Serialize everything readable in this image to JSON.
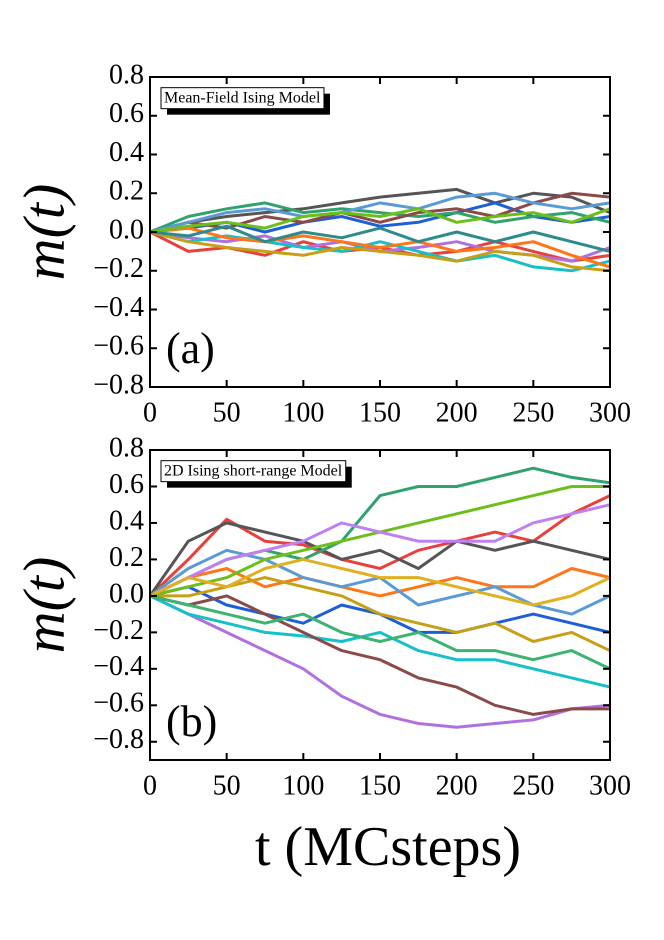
{
  "chart_data": [
    {
      "type": "line",
      "annotation": "Mean-Field Ising Model",
      "panel_label": "(a)",
      "ylabel": "m(t)",
      "x": [
        0,
        25,
        50,
        75,
        100,
        125,
        150,
        175,
        200,
        225,
        250,
        275,
        300
      ],
      "xlim": [
        0,
        300
      ],
      "xticks": [
        0,
        50,
        100,
        150,
        200,
        250,
        300
      ],
      "ylim": [
        -0.8,
        0.8
      ],
      "yticks": [
        {
          "value": -0.8,
          "label": "−0.8"
        },
        {
          "value": -0.6,
          "label": "−0.6"
        },
        {
          "value": -0.4,
          "label": "−0.4"
        },
        {
          "value": -0.2,
          "label": "−0.2"
        },
        {
          "value": 0,
          "label": "0.0"
        },
        0.2,
        0.4,
        0.6,
        0.8
      ],
      "series": [
        {
          "color": "#e8413b",
          "values": [
            0,
            -0.1,
            -0.08,
            -0.12,
            -0.05,
            -0.1,
            -0.08,
            -0.12,
            -0.1,
            -0.05,
            -0.1,
            -0.15,
            -0.12
          ]
        },
        {
          "color": "#555555",
          "values": [
            0,
            0.05,
            0.08,
            0.1,
            0.12,
            0.15,
            0.18,
            0.2,
            0.22,
            0.15,
            0.2,
            0.18,
            0.1
          ]
        },
        {
          "color": "#1f5fd6",
          "values": [
            0,
            0.02,
            0.05,
            0,
            0.05,
            0.08,
            0.03,
            0.05,
            0.1,
            0.15,
            0.08,
            0.05,
            0.08
          ]
        },
        {
          "color": "#2fa36b",
          "values": [
            0,
            0.08,
            0.12,
            0.15,
            0.1,
            0.12,
            0.1,
            0.08,
            0.1,
            0.05,
            0.08,
            0.1,
            0.05
          ]
        },
        {
          "color": "#b070e0",
          "values": [
            0,
            -0.03,
            -0.05,
            -0.02,
            -0.08,
            -0.05,
            -0.1,
            -0.08,
            -0.05,
            -0.1,
            -0.12,
            -0.15,
            -0.08
          ]
        },
        {
          "color": "#17c0c8",
          "values": [
            0,
            -0.05,
            -0.02,
            -0.05,
            -0.08,
            -0.1,
            -0.05,
            -0.1,
            -0.15,
            -0.12,
            -0.18,
            -0.2,
            -0.15
          ]
        },
        {
          "color": "#ff7518",
          "values": [
            0,
            0.02,
            -0.03,
            -0.05,
            -0.02,
            -0.05,
            -0.08,
            -0.05,
            -0.1,
            -0.08,
            -0.05,
            -0.12,
            -0.18
          ]
        },
        {
          "color": "#c8a018",
          "values": [
            0,
            -0.05,
            -0.08,
            -0.1,
            -0.12,
            -0.08,
            -0.1,
            -0.12,
            -0.15,
            -0.1,
            -0.12,
            -0.18,
            -0.2
          ]
        },
        {
          "color": "#8b4a4a",
          "values": [
            0,
            0.05,
            0.02,
            0.08,
            0.05,
            0.1,
            0.05,
            0.1,
            0.12,
            0.08,
            0.15,
            0.2,
            0.18
          ]
        },
        {
          "color": "#5b9bd5",
          "values": [
            0,
            0.05,
            0.1,
            0.12,
            0.08,
            0.1,
            0.15,
            0.12,
            0.18,
            0.2,
            0.15,
            0.12,
            0.15
          ]
        },
        {
          "color": "#6cbf1a",
          "values": [
            0,
            0.03,
            0.05,
            0.02,
            0.08,
            0.1,
            0.08,
            0.12,
            0.05,
            0.08,
            0.1,
            0.05,
            0.12
          ]
        },
        {
          "color": "#2e8b8b",
          "values": [
            0,
            -0.02,
            0.03,
            -0.05,
            0,
            -0.03,
            0.02,
            -0.05,
            0,
            -0.05,
            0,
            -0.05,
            -0.1
          ]
        }
      ]
    },
    {
      "type": "line",
      "annotation": "2D Ising short-range Model",
      "panel_label": "(b)",
      "ylabel": "m(t)",
      "xlabel": "t (MCsteps)",
      "x": [
        0,
        25,
        50,
        75,
        100,
        125,
        150,
        175,
        200,
        225,
        250,
        275,
        300
      ],
      "xlim": [
        0,
        300
      ],
      "xticks": [
        0,
        50,
        100,
        150,
        200,
        250,
        300
      ],
      "ylim": [
        -0.9,
        0.8
      ],
      "yticks": [
        {
          "value": -0.8,
          "label": "−0.8"
        },
        {
          "value": -0.6,
          "label": "−0.6"
        },
        {
          "value": -0.4,
          "label": "−0.4"
        },
        {
          "value": -0.2,
          "label": "−0.2"
        },
        {
          "value": 0,
          "label": "0.0"
        },
        0.2,
        0.4,
        0.6,
        0.8
      ],
      "series": [
        {
          "color": "#e8413b",
          "values": [
            0,
            0.2,
            0.42,
            0.3,
            0.28,
            0.2,
            0.15,
            0.25,
            0.3,
            0.35,
            0.3,
            0.45,
            0.55
          ]
        },
        {
          "color": "#555555",
          "values": [
            0,
            0.3,
            0.4,
            0.35,
            0.3,
            0.2,
            0.25,
            0.15,
            0.3,
            0.25,
            0.3,
            0.25,
            0.2
          ]
        },
        {
          "color": "#1f5fd6",
          "values": [
            0,
            0.05,
            -0.05,
            -0.1,
            -0.15,
            -0.05,
            -0.1,
            -0.2,
            -0.2,
            -0.15,
            -0.1,
            -0.15,
            -0.2
          ]
        },
        {
          "color": "#2fa36b",
          "values": [
            0,
            0.1,
            0.2,
            0.25,
            0.2,
            0.3,
            0.55,
            0.6,
            0.6,
            0.65,
            0.7,
            0.65,
            0.62
          ]
        },
        {
          "color": "#b070e0",
          "values": [
            0,
            -0.1,
            -0.2,
            -0.3,
            -0.4,
            -0.55,
            -0.65,
            -0.7,
            -0.72,
            -0.7,
            -0.68,
            -0.62,
            -0.6
          ]
        },
        {
          "color": "#17c0c8",
          "values": [
            0,
            -0.1,
            -0.15,
            -0.2,
            -0.22,
            -0.25,
            -0.2,
            -0.3,
            -0.35,
            -0.35,
            -0.4,
            -0.45,
            -0.5
          ]
        },
        {
          "color": "#ff7518",
          "values": [
            0,
            0.1,
            0.15,
            0.05,
            0.1,
            0.05,
            0,
            0.05,
            0.1,
            0.05,
            0.05,
            0.15,
            0.1
          ]
        },
        {
          "color": "#c8a018",
          "values": [
            0,
            0,
            0.05,
            0.1,
            0.05,
            0,
            -0.1,
            -0.15,
            -0.2,
            -0.15,
            -0.25,
            -0.2,
            -0.3
          ]
        },
        {
          "color": "#8b4a4a",
          "values": [
            0,
            -0.05,
            0,
            -0.1,
            -0.2,
            -0.3,
            -0.35,
            -0.45,
            -0.5,
            -0.6,
            -0.65,
            -0.62,
            -0.62
          ]
        },
        {
          "color": "#5b9bd5",
          "values": [
            0,
            0.15,
            0.25,
            0.2,
            0.1,
            0.05,
            0.1,
            -0.05,
            0,
            0.05,
            -0.05,
            -0.1,
            0
          ]
        },
        {
          "color": "#6cbf1a",
          "values": [
            0,
            0.05,
            0.1,
            0.2,
            0.25,
            0.3,
            0.35,
            0.4,
            0.45,
            0.5,
            0.55,
            0.6,
            0.6
          ]
        },
        {
          "color": "#3cb371",
          "values": [
            0,
            -0.05,
            -0.1,
            -0.15,
            -0.1,
            -0.2,
            -0.25,
            -0.2,
            -0.3,
            -0.3,
            -0.35,
            -0.3,
            -0.4
          ]
        },
        {
          "color": "#c080f0",
          "values": [
            0,
            0.1,
            0.2,
            0.25,
            0.3,
            0.4,
            0.35,
            0.3,
            0.3,
            0.3,
            0.4,
            0.45,
            0.5
          ]
        },
        {
          "color": "#e0b020",
          "values": [
            0,
            0.1,
            0.05,
            0.15,
            0.2,
            0.15,
            0.1,
            0.1,
            0.05,
            0,
            -0.05,
            0,
            0.1
          ]
        }
      ]
    }
  ]
}
